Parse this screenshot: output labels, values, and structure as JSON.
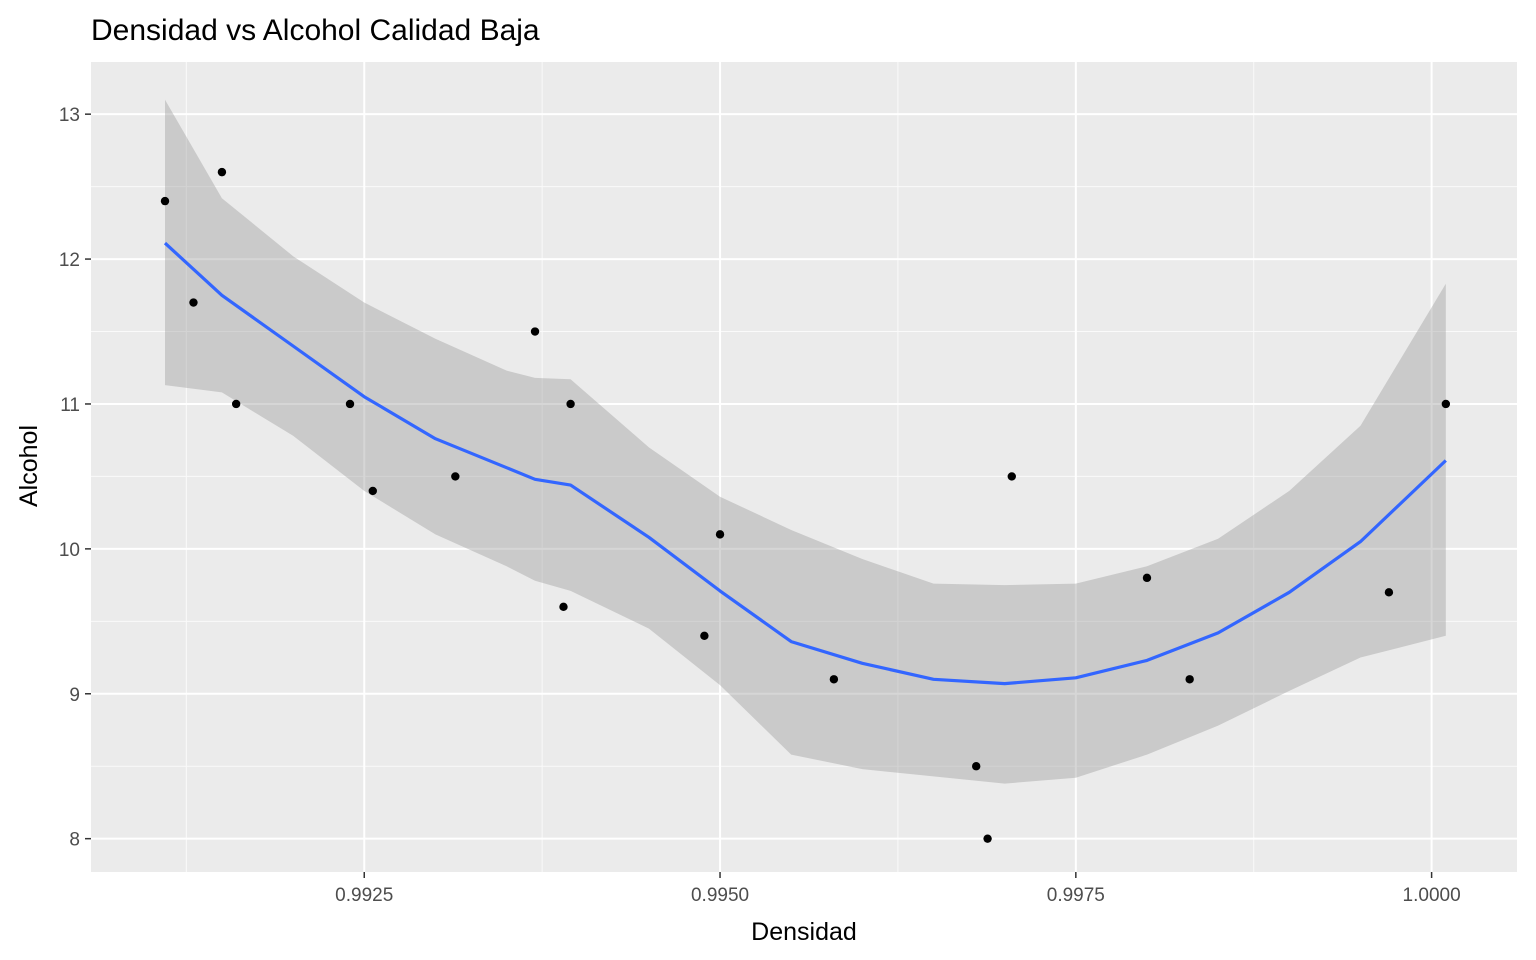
{
  "chart_data": {
    "type": "scatter",
    "title": "Densidad vs Alcohol Calidad Baja",
    "xlabel": "Densidad",
    "ylabel": "Alcohol",
    "xlim": [
      0.99058,
      1.0006
    ],
    "ylim": [
      7.77,
      13.36
    ],
    "grid": true,
    "x_ticks": [
      0.9925,
      0.995,
      0.9975,
      1.0
    ],
    "x_tick_labels": [
      "0.9925",
      "0.9950",
      "0.9975",
      "1.0000"
    ],
    "x_minor_ticks": [
      0.99125,
      0.99375,
      0.99625,
      0.99875
    ],
    "y_ticks": [
      8,
      9,
      10,
      11,
      12,
      13
    ],
    "y_tick_labels": [
      "8",
      "9",
      "10",
      "11",
      "12",
      "13"
    ],
    "y_minor_ticks": [
      8.5,
      9.5,
      10.5,
      11.5,
      12.5
    ],
    "points": [
      {
        "x": 0.9911,
        "y": 12.4
      },
      {
        "x": 0.9913,
        "y": 11.7
      },
      {
        "x": 0.9915,
        "y": 12.6
      },
      {
        "x": 0.9916,
        "y": 11.0
      },
      {
        "x": 0.9924,
        "y": 11.0
      },
      {
        "x": 0.99256,
        "y": 10.4
      },
      {
        "x": 0.99314,
        "y": 10.5
      },
      {
        "x": 0.9937,
        "y": 11.5
      },
      {
        "x": 0.9939,
        "y": 9.6
      },
      {
        "x": 0.99395,
        "y": 11.0
      },
      {
        "x": 0.99489,
        "y": 9.4
      },
      {
        "x": 0.995,
        "y": 10.1
      },
      {
        "x": 0.9958,
        "y": 9.1
      },
      {
        "x": 0.9968,
        "y": 8.5
      },
      {
        "x": 0.99688,
        "y": 8.0
      },
      {
        "x": 0.99705,
        "y": 10.5
      },
      {
        "x": 0.998,
        "y": 9.8
      },
      {
        "x": 0.9983,
        "y": 9.1
      },
      {
        "x": 0.9997,
        "y": 9.7
      },
      {
        "x": 1.0001,
        "y": 11.0
      }
    ],
    "smooth": {
      "color": "#3366ff",
      "band_color": "#999999",
      "x": [
        0.9911,
        0.9915,
        0.992,
        0.9925,
        0.993,
        0.9935,
        0.9937,
        0.99395,
        0.9945,
        0.995,
        0.9955,
        0.996,
        0.9965,
        0.997,
        0.9975,
        0.998,
        0.9985,
        0.999,
        0.9995,
        1.0001
      ],
      "y": [
        12.11,
        11.75,
        11.4,
        11.05,
        10.76,
        10.56,
        10.48,
        10.44,
        10.08,
        9.71,
        9.36,
        9.21,
        9.1,
        9.07,
        9.11,
        9.23,
        9.42,
        9.7,
        10.05,
        10.61
      ],
      "lower": [
        11.13,
        11.08,
        10.78,
        10.4,
        10.1,
        9.88,
        9.78,
        9.71,
        9.45,
        9.06,
        8.58,
        8.48,
        8.43,
        8.38,
        8.42,
        8.58,
        8.78,
        9.02,
        9.25,
        9.4
      ],
      "upper": [
        13.1,
        12.42,
        12.02,
        11.7,
        11.45,
        11.23,
        11.18,
        11.17,
        10.7,
        10.36,
        10.13,
        9.93,
        9.76,
        9.75,
        9.76,
        9.88,
        10.07,
        10.4,
        10.85,
        11.83
      ]
    },
    "colors": {
      "panel": "#ebebeb",
      "grid_major": "#ffffff",
      "points": "#000000"
    }
  }
}
